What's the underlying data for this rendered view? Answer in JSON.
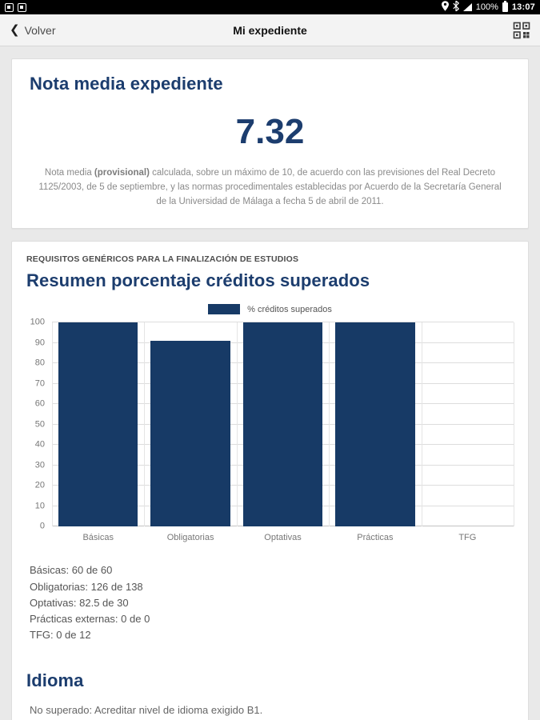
{
  "status_bar": {
    "time": "13:07",
    "battery_label": "100%"
  },
  "nav": {
    "back_label": "Volver",
    "title": "Mi expediente"
  },
  "average_card": {
    "title": "Nota media expediente",
    "value": "7.32",
    "note_prefix": "Nota media ",
    "note_bold": "(provisional)",
    "note_suffix": " calculada, sobre un máximo de 10, de acuerdo con las previsiones del Real Decreto 1125/2003, de 5 de septiembre, y las normas procedimentales establecidas por Acuerdo de la Secretaría General de la Universidad de Málaga a fecha 5 de abril de 2011."
  },
  "credits_card": {
    "overline": "REQUISITOS GENÉRICOS PARA LA FINALIZACIÓN DE ESTUDIOS",
    "title": "Resumen porcentaje créditos superados",
    "stats": [
      "Básicas: 60 de 60",
      "Obligatorias: 126 de 138",
      "Optativas: 82.5 de 30",
      "Prácticas externas: 0 de 0",
      "TFG: 0 de 12"
    ]
  },
  "idioma": {
    "title": "Idioma",
    "text": "No superado: Acreditar nivel de idioma exigido B1."
  },
  "chart_data": {
    "type": "bar",
    "title": "Resumen porcentaje créditos superados",
    "legend": "% créditos superados",
    "legend_position": "top",
    "categories": [
      "Básicas",
      "Obligatorias",
      "Optativas",
      "Prácticas",
      "TFG"
    ],
    "values": [
      100,
      91.3,
      100,
      100,
      0
    ],
    "ylim": [
      0,
      100
    ],
    "ytick_interval": 10,
    "grid": true,
    "bar_color": "#173a66"
  }
}
